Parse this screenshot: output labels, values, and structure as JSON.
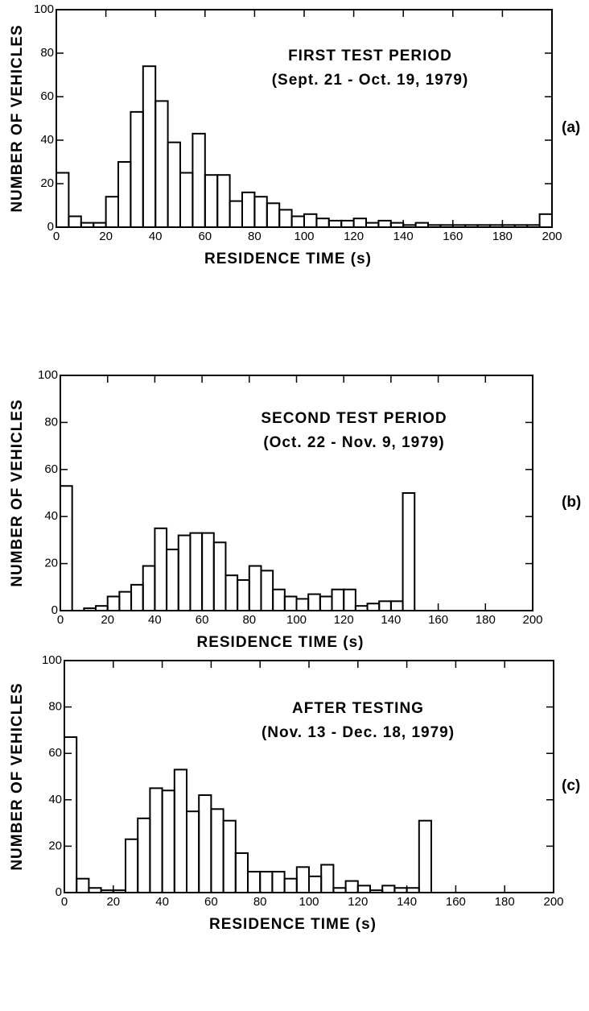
{
  "chart_data": [
    {
      "type": "histogram",
      "title": "FIRST TEST PERIOD",
      "subtitle": "(Sept. 21 - Oct. 19, 1979)",
      "panel_label": "(a)",
      "xlabel": "RESIDENCE TIME (s)",
      "ylabel": "NUMBER OF VEHICLES",
      "bins": [
        0,
        5,
        10,
        15,
        20,
        25,
        30,
        35,
        40,
        45,
        50,
        55,
        60,
        65,
        70,
        75,
        80,
        85,
        90,
        95,
        100,
        105,
        110,
        115,
        120,
        125,
        130,
        135,
        140,
        145,
        150,
        155,
        160,
        165,
        170,
        175,
        180,
        185,
        190,
        195,
        200
      ],
      "values": [
        25,
        5,
        2,
        2,
        14,
        30,
        53,
        74,
        58,
        39,
        25,
        43,
        24,
        24,
        12,
        16,
        14,
        11,
        8,
        5,
        6,
        4,
        3,
        3,
        4,
        2,
        3,
        2,
        1,
        2,
        1,
        1,
        1,
        1,
        1,
        1,
        1,
        1,
        1,
        6
      ],
      "color": "#000000",
      "xlim": [
        0,
        200
      ],
      "ylim": [
        0,
        100
      ],
      "xticks": [
        0,
        20,
        40,
        60,
        80,
        100,
        120,
        140,
        160,
        180,
        200
      ],
      "yticks": [
        0,
        20,
        40,
        60,
        80,
        100
      ]
    },
    {
      "type": "histogram",
      "title": "SECOND TEST PERIOD",
      "subtitle": "(Oct. 22 - Nov. 9, 1979)",
      "panel_label": "(b)",
      "xlabel": "RESIDENCE TIME (s)",
      "ylabel": "NUMBER OF VEHICLES",
      "bins": [
        0,
        5,
        10,
        15,
        20,
        25,
        30,
        35,
        40,
        45,
        50,
        55,
        60,
        65,
        70,
        75,
        80,
        85,
        90,
        95,
        100,
        105,
        110,
        115,
        120,
        125,
        130,
        135,
        140,
        145,
        150,
        155,
        160,
        165,
        170,
        175,
        180,
        185,
        190,
        195,
        200
      ],
      "values": [
        53,
        0,
        1,
        2,
        6,
        8,
        11,
        19,
        35,
        26,
        32,
        33,
        33,
        29,
        15,
        13,
        19,
        17,
        9,
        6,
        5,
        7,
        6,
        9,
        9,
        2,
        3,
        4,
        4,
        50,
        0,
        0,
        0,
        0,
        0,
        0,
        0,
        0,
        0,
        0
      ],
      "color": "#000000",
      "xlim": [
        0,
        200
      ],
      "ylim": [
        0,
        100
      ],
      "xticks": [
        0,
        20,
        40,
        60,
        80,
        100,
        120,
        140,
        160,
        180,
        200
      ],
      "yticks": [
        0,
        20,
        40,
        60,
        80,
        100
      ]
    },
    {
      "type": "histogram",
      "title": "AFTER TESTING",
      "subtitle": "(Nov. 13 - Dec. 18, 1979)",
      "panel_label": "(c)",
      "xlabel": "RESIDENCE TIME (s)",
      "ylabel": "NUMBER OF VEHICLES",
      "bins": [
        0,
        5,
        10,
        15,
        20,
        25,
        30,
        35,
        40,
        45,
        50,
        55,
        60,
        65,
        70,
        75,
        80,
        85,
        90,
        95,
        100,
        105,
        110,
        115,
        120,
        125,
        130,
        135,
        140,
        145,
        150,
        155,
        160,
        165,
        170,
        175,
        180,
        185,
        190,
        195,
        200
      ],
      "values": [
        67,
        6,
        2,
        1,
        1,
        23,
        32,
        45,
        44,
        53,
        35,
        42,
        36,
        31,
        17,
        9,
        9,
        9,
        6,
        11,
        7,
        12,
        2,
        5,
        3,
        1,
        3,
        2,
        2,
        31,
        0,
        0,
        0,
        0,
        0,
        0,
        0,
        0,
        0,
        0
      ],
      "color": "#000000",
      "xlim": [
        0,
        200
      ],
      "ylim": [
        0,
        100
      ],
      "xticks": [
        0,
        20,
        40,
        60,
        80,
        100,
        120,
        140,
        160,
        180,
        200
      ],
      "yticks": [
        0,
        20,
        40,
        60,
        80,
        100
      ]
    }
  ]
}
